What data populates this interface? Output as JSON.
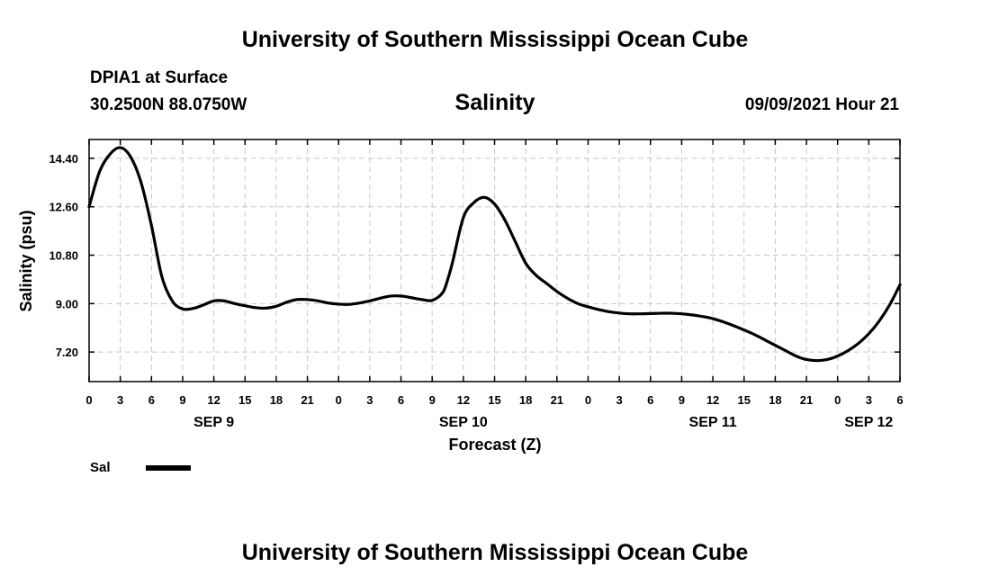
{
  "header": {
    "top_title": "University of Southern Mississippi Ocean Cube",
    "station": "DPIA1 at Surface",
    "coords": "30.2500N  88.0750W",
    "variable": "Salinity",
    "datetime": "09/09/2021 Hour 21"
  },
  "footer": {
    "bottom_title": "University of Southern Mississippi Ocean Cube"
  },
  "legend": {
    "label": "Sal"
  },
  "chart_data": {
    "type": "line",
    "title": "Salinity",
    "xlabel": "Forecast (Z)",
    "ylabel": "Salinity (psu)",
    "xlim": [
      0,
      78
    ],
    "ylim": [
      6.1,
      15.1
    ],
    "y_ticks": [
      7.2,
      9.0,
      10.8,
      12.6,
      14.4
    ],
    "y_tick_labels": [
      "7.20",
      "9.00",
      "10.80",
      "12.60",
      "14.40"
    ],
    "x_ticks": [
      0,
      3,
      6,
      9,
      12,
      15,
      18,
      21,
      24,
      27,
      30,
      33,
      36,
      39,
      42,
      45,
      48,
      51,
      54,
      57,
      60,
      63,
      66,
      69,
      72,
      75,
      78
    ],
    "x_tick_labels": [
      "0",
      "3",
      "6",
      "9",
      "12",
      "15",
      "18",
      "21",
      "0",
      "3",
      "6",
      "9",
      "12",
      "15",
      "18",
      "21",
      "0",
      "3",
      "6",
      "9",
      "12",
      "15",
      "18",
      "21",
      "0",
      "3",
      "6"
    ],
    "day_labels": [
      {
        "x": 12,
        "label": "SEP 9"
      },
      {
        "x": 36,
        "label": "SEP 10"
      },
      {
        "x": 60,
        "label": "SEP 11"
      },
      {
        "x": 75,
        "label": "SEP 12"
      }
    ],
    "grid": true,
    "legend_position": "bottom-left",
    "series": [
      {
        "name": "Sal",
        "color": "#000000",
        "x": [
          0,
          1,
          2,
          3,
          4,
          5,
          6,
          7,
          8,
          9,
          10,
          11,
          12,
          13,
          14,
          15,
          16,
          17,
          18,
          19,
          20,
          21,
          22,
          23,
          24,
          25,
          26,
          27,
          28,
          29,
          30,
          31,
          32,
          33,
          34,
          34.5,
          35,
          36,
          37,
          38,
          39,
          40,
          41,
          42,
          43,
          44,
          45,
          46,
          47,
          48,
          49,
          50,
          51,
          52,
          53,
          54,
          55,
          56,
          57,
          58,
          59,
          60,
          61,
          62,
          63,
          64,
          65,
          66,
          67,
          68,
          69,
          70,
          71,
          72,
          73,
          74,
          75,
          76,
          77,
          78
        ],
        "values": [
          12.6,
          13.9,
          14.55,
          14.8,
          14.45,
          13.5,
          11.9,
          10.0,
          9.1,
          8.8,
          8.82,
          8.95,
          9.1,
          9.1,
          9.0,
          8.92,
          8.85,
          8.83,
          8.9,
          9.05,
          9.15,
          9.15,
          9.1,
          9.02,
          8.98,
          8.97,
          9.02,
          9.1,
          9.2,
          9.28,
          9.28,
          9.22,
          9.15,
          9.12,
          9.4,
          9.9,
          10.6,
          12.2,
          12.75,
          12.95,
          12.7,
          12.1,
          11.3,
          10.5,
          10.05,
          9.75,
          9.45,
          9.2,
          9.0,
          8.88,
          8.78,
          8.7,
          8.65,
          8.62,
          8.62,
          8.63,
          8.64,
          8.64,
          8.62,
          8.58,
          8.52,
          8.44,
          8.32,
          8.18,
          8.02,
          7.85,
          7.65,
          7.45,
          7.25,
          7.05,
          6.92,
          6.88,
          6.92,
          7.05,
          7.25,
          7.52,
          7.88,
          8.35,
          8.95,
          9.7
        ]
      }
    ]
  }
}
